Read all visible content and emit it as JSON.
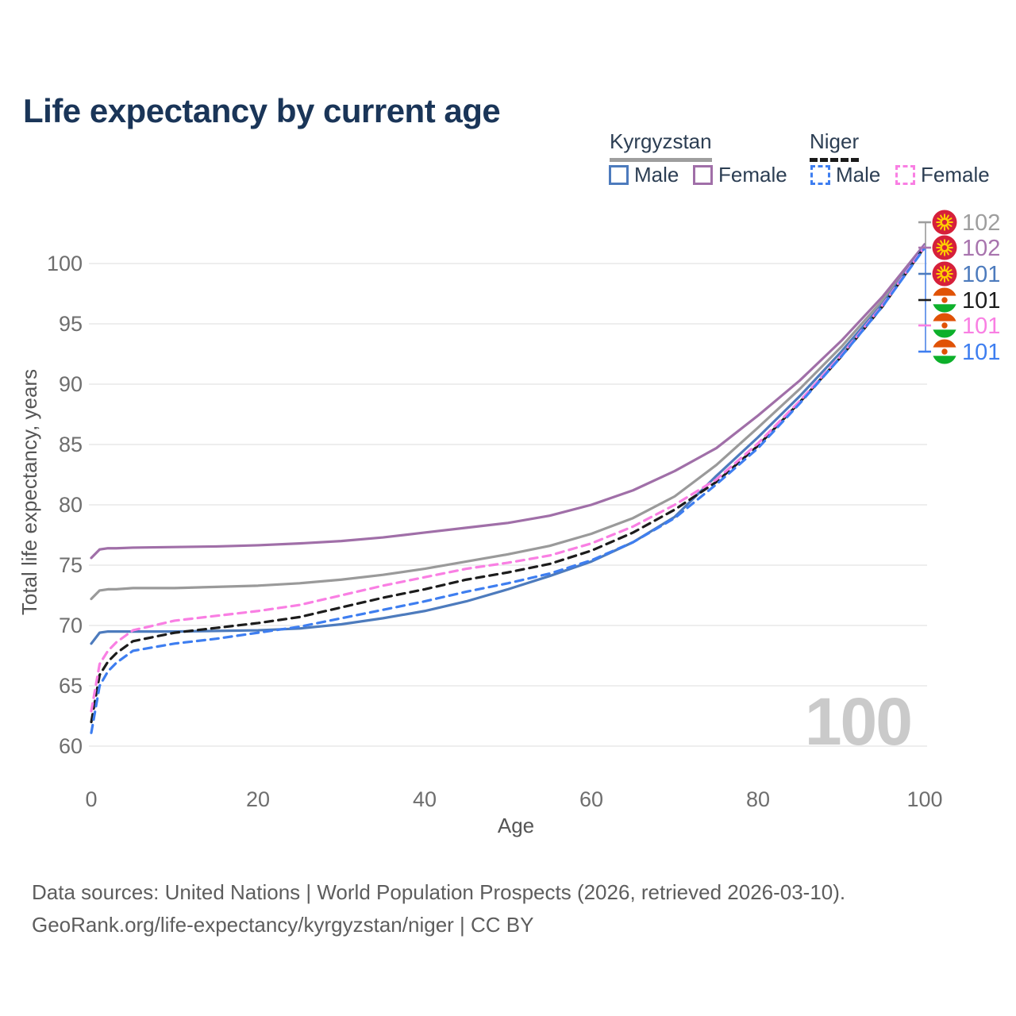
{
  "title": "Life expectancy by current age",
  "legend": {
    "groups": [
      {
        "label": "Kyrgyzstan",
        "line_style": "solid",
        "underline_color": "#9e9e9e"
      },
      {
        "label": "Niger",
        "line_style": "dashed",
        "underline_color": "#1a1a1a"
      }
    ],
    "items": [
      {
        "label": "Male",
        "country": "Kyrgyzstan",
        "color": "#4d7bbd",
        "dashed": false
      },
      {
        "label": "Female",
        "country": "Kyrgyzstan",
        "color": "#a06fa8",
        "dashed": false
      },
      {
        "label": "Male",
        "country": "Niger",
        "color": "#3e7ef0",
        "dashed": true
      },
      {
        "label": "Female",
        "country": "Niger",
        "color": "#f97fe3",
        "dashed": true
      }
    ]
  },
  "chart_data": {
    "type": "line",
    "title": "Life expectancy by current age",
    "xlabel": "Age",
    "ylabel": "Total life expectancy, years",
    "xlim": [
      0,
      100
    ],
    "ylim": [
      60,
      100
    ],
    "x_ticks": [
      0,
      20,
      40,
      60,
      80,
      100
    ],
    "y_ticks": [
      60,
      65,
      70,
      75,
      80,
      85,
      90,
      95,
      100
    ],
    "grid": "horizontal",
    "legend_position": "top-right",
    "watermark": "100",
    "x": [
      0,
      1,
      2,
      3,
      5,
      10,
      15,
      20,
      25,
      30,
      35,
      40,
      45,
      50,
      55,
      60,
      65,
      70,
      75,
      80,
      85,
      90,
      95,
      100
    ],
    "series": [
      {
        "name": "Kyrgyzstan",
        "sex": "Both",
        "color": "#9a9a9a",
        "dashed": false,
        "end_label": "102",
        "label_color": "#9e9e9e",
        "flag": "kyrgyzstan",
        "values": [
          72.2,
          72.9,
          73.0,
          73.0,
          73.1,
          73.1,
          73.2,
          73.3,
          73.5,
          73.8,
          74.2,
          74.7,
          75.3,
          75.9,
          76.6,
          77.6,
          78.9,
          80.7,
          83.3,
          86.4,
          89.6,
          93.1,
          97.0,
          101.55
        ]
      },
      {
        "name": "Kyrgyzstan Female",
        "sex": "Female",
        "color": "#a06fa8",
        "dashed": false,
        "end_label": "102",
        "label_color": "#a874ae",
        "flag": "kyrgyzstan",
        "values": [
          75.6,
          76.3,
          76.4,
          76.4,
          76.45,
          76.5,
          76.55,
          76.65,
          76.8,
          77.0,
          77.3,
          77.7,
          78.1,
          78.5,
          79.1,
          80.0,
          81.2,
          82.8,
          84.7,
          87.4,
          90.3,
          93.6,
          97.3,
          101.6
        ]
      },
      {
        "name": "Kyrgyzstan Male",
        "sex": "Male",
        "color": "#4d7bbd",
        "dashed": false,
        "end_label": "101",
        "label_color": "#4d7bbd",
        "flag": "kyrgyzstan",
        "values": [
          68.5,
          69.4,
          69.5,
          69.5,
          69.5,
          69.5,
          69.55,
          69.6,
          69.75,
          70.1,
          70.6,
          71.2,
          72.0,
          73.0,
          74.1,
          75.3,
          76.9,
          79.0,
          82.4,
          85.6,
          89.0,
          92.7,
          96.7,
          101.45
        ]
      },
      {
        "name": "Niger",
        "sex": "Both",
        "color": "#1c1c1c",
        "dashed": true,
        "end_label": "101",
        "label_color": "#1c1c1c",
        "flag": "niger",
        "values": [
          62.0,
          65.9,
          67.0,
          67.7,
          68.7,
          69.4,
          69.8,
          70.2,
          70.7,
          71.5,
          72.3,
          73.0,
          73.8,
          74.4,
          75.1,
          76.2,
          77.7,
          79.6,
          81.9,
          84.9,
          88.5,
          92.3,
          96.5,
          101.38
        ]
      },
      {
        "name": "Niger Female",
        "sex": "Female",
        "color": "#f97fe3",
        "dashed": true,
        "end_label": "101",
        "label_color": "#f97fe3",
        "flag": "niger",
        "values": [
          62.9,
          66.8,
          67.9,
          68.6,
          69.6,
          70.4,
          70.8,
          71.2,
          71.7,
          72.5,
          73.3,
          74.0,
          74.7,
          75.2,
          75.8,
          76.8,
          78.2,
          80.0,
          82.1,
          85.1,
          88.6,
          92.4,
          96.6,
          101.4
        ]
      },
      {
        "name": "Niger Male",
        "sex": "Male",
        "color": "#3e7ef0",
        "dashed": true,
        "end_label": "101",
        "label_color": "#3e7ef0",
        "flag": "niger",
        "values": [
          61.1,
          65.0,
          66.2,
          66.9,
          67.9,
          68.5,
          68.9,
          69.4,
          69.9,
          70.6,
          71.3,
          72.0,
          72.8,
          73.5,
          74.3,
          75.4,
          76.9,
          78.9,
          81.7,
          84.7,
          88.4,
          92.3,
          96.5,
          101.3
        ]
      }
    ],
    "flag_colors": {
      "kyrgyzstan_red": "#d6203a",
      "kyrgyzstan_yellow": "#ffcf00",
      "niger_orange": "#e05206",
      "niger_white": "#ffffff",
      "niger_green": "#0db02b"
    }
  },
  "footer": {
    "line1": "Data sources: United Nations | World Population Prospects (2026, retrieved 2026-03-10).",
    "line2": "GeoRank.org/life-expectancy/kyrgyzstan/niger | CC BY"
  }
}
